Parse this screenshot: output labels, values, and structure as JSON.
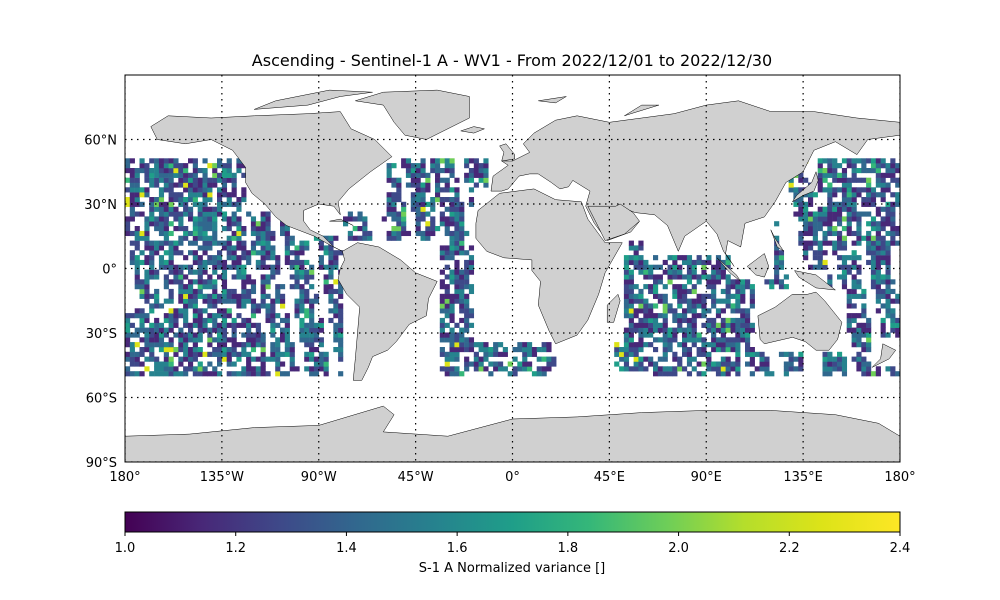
{
  "title": "Ascending - Sentinel-1 A - WV1 - From 2022/12/01 to 2022/12/30",
  "map": {
    "projection": "PlateCarree",
    "lon_range": [
      -180,
      180
    ],
    "lat_range": [
      -90,
      90
    ],
    "land_color": "#d0d0d0",
    "coast_color": "#000000",
    "gridlines": "dotted",
    "lon_ticks": [
      {
        "value": -180,
        "label": "180°"
      },
      {
        "value": -135,
        "label": "135°W"
      },
      {
        "value": -90,
        "label": "90°W"
      },
      {
        "value": -45,
        "label": "45°W"
      },
      {
        "value": 0,
        "label": "0°"
      },
      {
        "value": 45,
        "label": "45°E"
      },
      {
        "value": 90,
        "label": "90°E"
      },
      {
        "value": 135,
        "label": "135°E"
      },
      {
        "value": 180,
        "label": "180°"
      }
    ],
    "lat_ticks": [
      {
        "value": 60,
        "label": "60°N"
      },
      {
        "value": 30,
        "label": "30°N"
      },
      {
        "value": 0,
        "label": "0°"
      },
      {
        "value": -30,
        "label": "30°S"
      },
      {
        "value": -60,
        "label": "60°S"
      },
      {
        "value": -90,
        "label": "90°S"
      }
    ],
    "data_coverage_lat": [
      -50,
      50
    ]
  },
  "colorbar": {
    "label": "S-1 A Normalized variance []",
    "colormap": "viridis",
    "range": [
      1.0,
      2.4
    ],
    "ticks": [
      "1.0",
      "1.2",
      "1.4",
      "1.6",
      "1.8",
      "2.0",
      "2.2",
      "2.4"
    ]
  }
}
